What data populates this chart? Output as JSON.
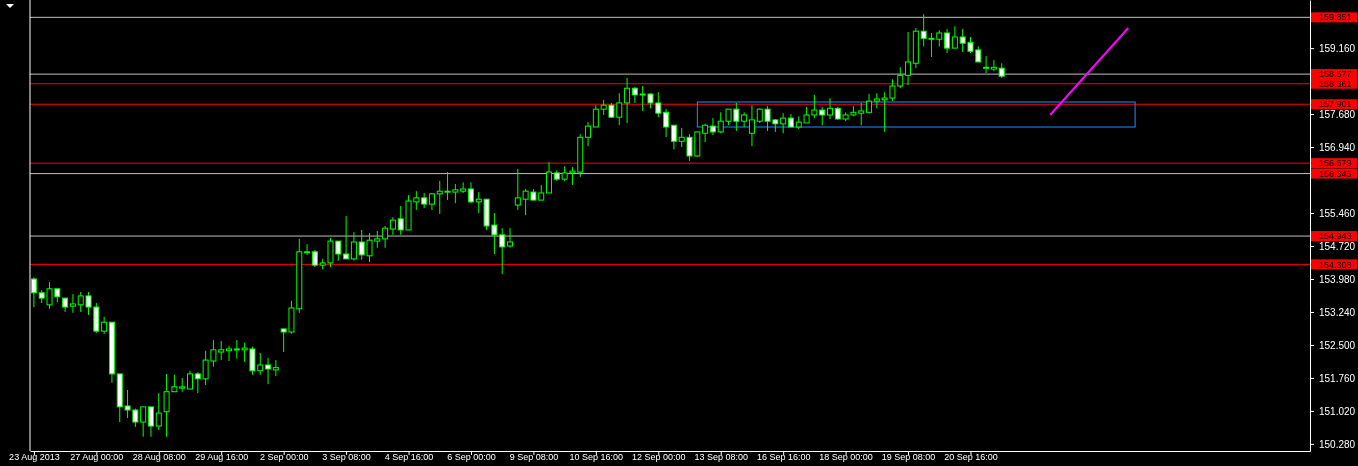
{
  "chart_data": {
    "type": "candlestick",
    "categories": [
      "23 Aug 2013",
      null,
      null,
      null,
      null,
      null,
      null,
      null,
      "27 Aug 00:00",
      null,
      null,
      null,
      null,
      null,
      null,
      null,
      "28 Aug 08:00",
      null,
      null,
      null,
      null,
      null,
      null,
      null,
      "29 Aug 16:00",
      null,
      null,
      null,
      null,
      null,
      null,
      null,
      "2 Sep 00:00",
      null,
      null,
      null,
      null,
      null,
      null,
      null,
      "3 Sep 08:00",
      null,
      null,
      null,
      null,
      null,
      null,
      null,
      "4 Sep 16:00",
      null,
      null,
      null,
      null,
      null,
      null,
      null,
      "6 Sep 00:00",
      null,
      null,
      null,
      null,
      null,
      null,
      null,
      "9 Sep 08:00",
      null,
      null,
      null,
      null,
      null,
      null,
      null,
      "10 Sep 16:00",
      null,
      null,
      null,
      null,
      null,
      null,
      null,
      "12 Sep 00:00",
      null,
      null,
      null,
      null,
      null,
      null,
      null,
      "13 Sep 08:00",
      null,
      null,
      null,
      null,
      null,
      null,
      null,
      "16 Sep 16:00",
      null,
      null,
      null,
      null,
      null,
      null,
      null,
      "18 Sep 00:00",
      null,
      null,
      null,
      null,
      null,
      null,
      null,
      "19 Sep 08:00",
      null,
      null,
      null,
      null,
      null,
      null,
      null,
      "20 Sep 16:00",
      null,
      null,
      null,
      null,
      null,
      null,
      null,
      null,
      null,
      null,
      null,
      null,
      null,
      null,
      null,
      null,
      null,
      null,
      null,
      null,
      null,
      null,
      null,
      null,
      null,
      null,
      null,
      null,
      null,
      null,
      null,
      null,
      null,
      null,
      null,
      null,
      null,
      null,
      null,
      null,
      null,
      null,
      null
    ],
    "ohlc": [
      [
        153.98,
        154.02,
        153.35,
        153.67
      ],
      [
        153.67,
        153.73,
        153.44,
        153.55
      ],
      [
        153.4,
        153.91,
        153.31,
        153.76
      ],
      [
        153.76,
        153.76,
        153.46,
        153.58
      ],
      [
        153.55,
        153.55,
        153.24,
        153.35
      ],
      [
        153.37,
        153.64,
        153.22,
        153.42
      ],
      [
        153.4,
        153.69,
        153.24,
        153.6
      ],
      [
        153.6,
        153.69,
        153.17,
        153.35
      ],
      [
        153.35,
        153.44,
        152.77,
        152.81
      ],
      [
        152.81,
        153.13,
        152.75,
        153.01
      ],
      [
        153.01,
        153.01,
        151.65,
        151.85
      ],
      [
        151.85,
        151.85,
        150.77,
        151.11
      ],
      [
        151.13,
        151.49,
        150.86,
        151.04
      ],
      [
        151.04,
        151.07,
        150.66,
        150.77
      ],
      [
        150.77,
        151.11,
        150.44,
        151.11
      ],
      [
        151.11,
        151.11,
        150.44,
        150.68
      ],
      [
        150.68,
        151.42,
        150.59,
        150.97
      ],
      [
        151.0,
        151.85,
        150.44,
        151.45
      ],
      [
        151.45,
        151.83,
        151.45,
        151.56
      ],
      [
        151.53,
        151.76,
        151.45,
        151.56
      ],
      [
        151.51,
        151.92,
        151.51,
        151.85
      ],
      [
        151.85,
        151.89,
        151.42,
        151.74
      ],
      [
        151.74,
        152.37,
        151.6,
        152.16
      ],
      [
        152.14,
        152.61,
        152.01,
        152.39
      ],
      [
        152.34,
        152.59,
        152.16,
        152.39
      ],
      [
        152.37,
        152.48,
        152.14,
        152.41
      ],
      [
        152.41,
        152.61,
        152.19,
        152.41
      ],
      [
        152.39,
        152.55,
        152.12,
        152.43
      ],
      [
        152.41,
        152.46,
        151.83,
        151.92
      ],
      [
        151.92,
        152.32,
        151.83,
        152.05
      ],
      [
        152.05,
        152.21,
        151.62,
        151.96
      ],
      [
        151.94,
        152.16,
        151.8,
        151.99
      ],
      [
        152.86,
        152.86,
        152.34,
        152.79
      ],
      [
        152.79,
        153.49,
        152.75,
        153.33
      ],
      [
        153.31,
        154.88,
        153.22,
        154.59
      ],
      [
        154.59,
        154.76,
        154.52,
        154.59
      ],
      [
        154.59,
        154.63,
        154.25,
        154.29
      ],
      [
        154.29,
        154.43,
        154.2,
        154.34
      ],
      [
        154.34,
        154.9,
        154.25,
        154.83
      ],
      [
        154.83,
        154.83,
        154.39,
        154.54
      ],
      [
        154.54,
        155.39,
        154.43,
        154.43
      ],
      [
        154.43,
        155.03,
        154.39,
        154.81
      ],
      [
        154.81,
        155.08,
        154.41,
        154.52
      ],
      [
        154.5,
        155.01,
        154.36,
        154.85
      ],
      [
        154.83,
        155.06,
        154.68,
        154.88
      ],
      [
        154.88,
        155.17,
        154.68,
        155.12
      ],
      [
        155.1,
        155.37,
        154.97,
        155.3
      ],
      [
        155.33,
        155.62,
        154.97,
        155.08
      ],
      [
        155.08,
        155.86,
        155.08,
        155.73
      ],
      [
        155.71,
        155.95,
        155.53,
        155.8
      ],
      [
        155.8,
        155.91,
        155.57,
        155.66
      ],
      [
        155.66,
        155.91,
        155.53,
        155.89
      ],
      [
        155.89,
        156.18,
        155.44,
        155.95
      ],
      [
        155.95,
        156.38,
        155.75,
        155.95
      ],
      [
        155.93,
        156.11,
        155.68,
        155.98
      ],
      [
        155.95,
        156.15,
        155.91,
        156.0
      ],
      [
        156.0,
        156.15,
        155.68,
        155.71
      ],
      [
        155.71,
        155.93,
        155.46,
        155.77
      ],
      [
        155.77,
        155.77,
        155.08,
        155.17
      ],
      [
        155.19,
        155.46,
        154.54,
        154.97
      ],
      [
        154.97,
        155.12,
        154.09,
        154.7
      ],
      [
        154.72,
        155.12,
        154.68,
        154.81
      ],
      [
        155.64,
        156.45,
        155.53,
        155.8
      ],
      [
        155.77,
        156.0,
        155.41,
        155.95
      ],
      [
        155.93,
        156.0,
        155.75,
        155.75
      ],
      [
        155.75,
        156.09,
        155.75,
        155.91
      ],
      [
        155.91,
        156.6,
        155.91,
        156.38
      ],
      [
        156.36,
        156.42,
        156.18,
        156.22
      ],
      [
        156.22,
        156.51,
        156.18,
        156.36
      ],
      [
        156.36,
        156.49,
        156.09,
        156.4
      ],
      [
        156.38,
        157.23,
        156.27,
        157.16
      ],
      [
        157.16,
        157.5,
        156.96,
        157.41
      ],
      [
        157.39,
        157.88,
        157.39,
        157.79
      ],
      [
        157.79,
        158.0,
        157.66,
        157.88
      ],
      [
        157.88,
        157.93,
        157.59,
        157.61
      ],
      [
        157.61,
        158.15,
        157.43,
        157.93
      ],
      [
        157.93,
        158.49,
        157.48,
        158.26
      ],
      [
        158.26,
        158.29,
        157.93,
        158.11
      ],
      [
        158.13,
        158.31,
        157.75,
        158.13
      ],
      [
        158.13,
        158.15,
        157.81,
        157.93
      ],
      [
        157.93,
        158.17,
        157.61,
        157.7
      ],
      [
        157.72,
        157.79,
        157.16,
        157.39
      ],
      [
        157.43,
        157.43,
        156.89,
        157.07
      ],
      [
        157.07,
        157.37,
        156.94,
        157.16
      ],
      [
        157.16,
        157.23,
        156.63,
        156.74
      ],
      [
        156.74,
        157.28,
        156.72,
        157.28
      ],
      [
        157.25,
        157.46,
        157.05,
        157.43
      ],
      [
        157.41,
        157.59,
        157.21,
        157.28
      ],
      [
        157.28,
        157.72,
        157.25,
        157.52
      ],
      [
        157.52,
        157.79,
        157.43,
        157.79
      ],
      [
        157.79,
        157.93,
        157.3,
        157.52
      ],
      [
        157.52,
        157.72,
        157.39,
        157.66
      ],
      [
        157.25,
        157.88,
        156.96,
        157.55
      ],
      [
        157.52,
        157.81,
        157.48,
        157.79
      ],
      [
        157.79,
        157.86,
        157.3,
        157.52
      ],
      [
        157.55,
        157.57,
        157.28,
        157.46
      ],
      [
        157.46,
        157.7,
        157.25,
        157.59
      ],
      [
        157.59,
        157.68,
        157.39,
        157.39
      ],
      [
        157.39,
        157.63,
        157.34,
        157.5
      ],
      [
        157.48,
        157.84,
        157.48,
        157.66
      ],
      [
        157.66,
        158.11,
        157.59,
        157.77
      ],
      [
        157.77,
        157.84,
        157.43,
        157.66
      ],
      [
        157.66,
        158.04,
        157.57,
        157.81
      ],
      [
        157.81,
        157.84,
        157.55,
        157.57
      ],
      [
        157.57,
        157.72,
        157.52,
        157.66
      ],
      [
        157.66,
        157.86,
        157.63,
        157.72
      ],
      [
        157.7,
        157.93,
        157.43,
        157.75
      ],
      [
        157.72,
        158.13,
        157.7,
        157.97
      ],
      [
        157.97,
        158.15,
        157.81,
        158.02
      ],
      [
        158.0,
        158.17,
        157.28,
        158.04
      ],
      [
        158.04,
        158.46,
        157.97,
        158.31
      ],
      [
        158.31,
        158.73,
        158.26,
        158.55
      ],
      [
        158.55,
        159.52,
        158.33,
        158.85
      ],
      [
        158.82,
        159.61,
        158.71,
        159.54
      ],
      [
        159.54,
        159.92,
        159.2,
        159.38
      ],
      [
        159.38,
        159.5,
        158.96,
        159.38
      ],
      [
        159.36,
        159.56,
        159.2,
        159.5
      ],
      [
        159.5,
        159.59,
        159.05,
        159.16
      ],
      [
        159.16,
        159.65,
        159.16,
        159.41
      ],
      [
        159.41,
        159.59,
        159.07,
        159.27
      ],
      [
        159.29,
        159.41,
        159.05,
        159.09
      ],
      [
        159.12,
        159.2,
        158.85,
        158.85
      ],
      [
        158.73,
        158.98,
        158.6,
        158.73
      ],
      [
        158.69,
        158.89,
        158.64,
        158.73
      ],
      [
        158.71,
        158.82,
        158.49,
        158.53
      ],
      null,
      null,
      null,
      null,
      null,
      null,
      null,
      null,
      null,
      null,
      null,
      null,
      null,
      null,
      null,
      null,
      null,
      null,
      null,
      null,
      null,
      null,
      null,
      null,
      null,
      null,
      null,
      null,
      null,
      null,
      null,
      null,
      null,
      null,
      null,
      null,
      null,
      null,
      null
    ],
    "ylim": [
      150.12,
      160.24
    ],
    "yticks": [
      {
        "value": 159.16,
        "label": "159.160"
      },
      {
        "value": 157.68,
        "label": "157.680"
      },
      {
        "value": 156.94,
        "label": "156.940"
      },
      {
        "value": 155.46,
        "label": "155.460"
      },
      {
        "value": 154.72,
        "label": "154.720"
      },
      {
        "value": 153.98,
        "label": "153.980"
      },
      {
        "value": 153.24,
        "label": "153.240"
      },
      {
        "value": 152.5,
        "label": "152.500"
      },
      {
        "value": 151.76,
        "label": "151.760"
      },
      {
        "value": 151.02,
        "label": "151.020"
      },
      {
        "value": 150.28,
        "label": "150.280"
      }
    ],
    "ref_lines": [
      {
        "axis": "y",
        "value": 159.851,
        "label": "159.851",
        "color": "#c0c0c0"
      },
      {
        "axis": "y",
        "value": 158.577,
        "label": "158.577",
        "color": "#c0c0c0"
      },
      {
        "axis": "y",
        "value": 158.361,
        "label": "158.361",
        "color": "#ff0000"
      },
      {
        "axis": "y",
        "value": 157.901,
        "label": "157.901",
        "color": "#ff0000"
      },
      {
        "axis": "y",
        "value": 156.579,
        "label": "156.579",
        "color": "#ff0000"
      },
      {
        "axis": "y",
        "value": 156.345,
        "label": "156.345",
        "color": "#c0c0c0"
      },
      {
        "axis": "y",
        "value": 154.943,
        "label": "154.943",
        "color": "#c0c0c0"
      },
      {
        "axis": "y",
        "value": 154.308,
        "label": "154.308",
        "color": "#ff0000"
      }
    ]
  }
}
